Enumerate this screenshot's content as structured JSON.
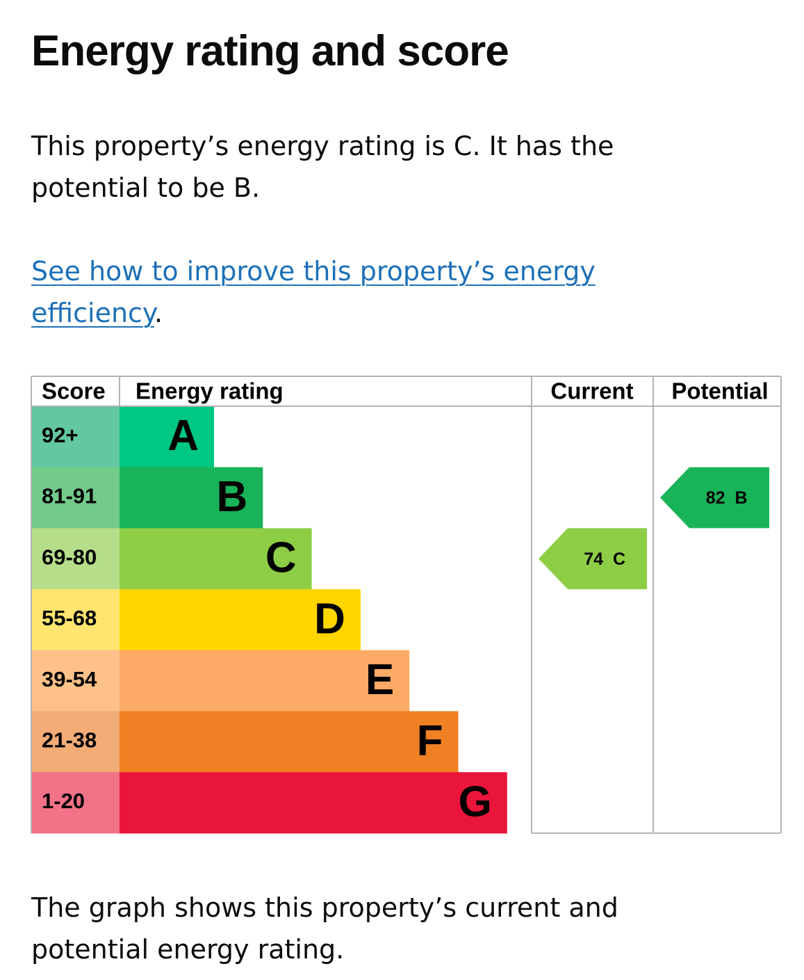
{
  "heading": "Energy rating and score",
  "summary": "This property’s energy rating is C. It has the potential to be B.",
  "link": {
    "text": "See how to improve this property’s energy efficiency",
    "suffix": "."
  },
  "table": {
    "headers": [
      "Score",
      "Energy rating",
      "Current",
      "Potential"
    ],
    "bands": [
      {
        "score": "92+",
        "letter": "A",
        "score_color": "#63c7a1",
        "color": "#00c781"
      },
      {
        "score": "81-91",
        "letter": "B",
        "score_color": "#72cb8a",
        "color": "#19b459"
      },
      {
        "score": "69-80",
        "letter": "C",
        "score_color": "#b6de8a",
        "color": "#8dce46"
      },
      {
        "score": "55-68",
        "letter": "D",
        "score_color": "#ffe56f",
        "color": "#ffd500"
      },
      {
        "score": "39-54",
        "letter": "E",
        "score_color": "#fec189",
        "color": "#fcaa65"
      },
      {
        "score": "21-38",
        "letter": "F",
        "score_color": "#f4ac77",
        "color": "#ef8023"
      },
      {
        "score": "1-20",
        "letter": "G",
        "score_color": "#f27288",
        "color": "#e9153b"
      }
    ],
    "current": {
      "score": "74",
      "letter": "C"
    },
    "potential": {
      "score": "82",
      "letter": "B"
    }
  },
  "footer": "The graph shows this property’s current and potential energy rating."
}
